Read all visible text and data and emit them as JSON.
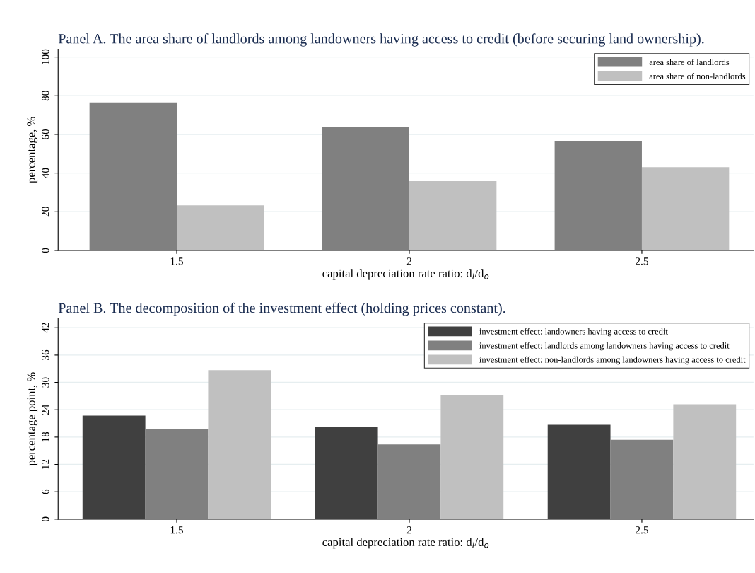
{
  "chart_data": [
    {
      "type": "bar",
      "title": "Panel A. The area share of landlords among landowners having access to credit (before securing land ownership).",
      "xlabel": "capital depreciation rate ratio: d$_{l}$/d$_{o}$",
      "ylabel": "percentage, %",
      "categories": [
        "1.5",
        "2",
        "2.5"
      ],
      "series": [
        {
          "name": "area share of landlords",
          "color": "#808080",
          "values": [
            76.5,
            64,
            56.7
          ]
        },
        {
          "name": "area share of non-landlords",
          "color": "#c0c0c0",
          "values": [
            23.3,
            35.8,
            43.1
          ]
        }
      ],
      "ylim": [
        0,
        104
      ],
      "yticks": [
        0,
        20,
        40,
        60,
        80,
        100
      ],
      "grid": "y",
      "legend": "top right"
    },
    {
      "type": "bar",
      "title": "Panel B. The decomposition of the investment effect (holding prices constant).",
      "xlabel": "capital depreciation rate ratio: d$_{l}$/d$_{o}$",
      "ylabel": "percentage point, %",
      "categories": [
        "1.5",
        "2",
        "2.5"
      ],
      "series": [
        {
          "name": "investment effect: landowners having access to credit",
          "color": "#404040",
          "values": [
            22.7,
            20.2,
            20.7
          ]
        },
        {
          "name": "investment effect: landlords among landowners having access to credit",
          "color": "#808080",
          "values": [
            19.7,
            16.4,
            17.4
          ]
        },
        {
          "name": "investment effect: non-landlords among landowners having access to credit",
          "color": "#c0c0c0",
          "values": [
            32.7,
            27.2,
            25.2
          ]
        }
      ],
      "ylim": [
        0,
        44
      ],
      "yticks": [
        0,
        6,
        12,
        18,
        24,
        30,
        36,
        42
      ],
      "grid": "y",
      "legend": "top right"
    }
  ]
}
